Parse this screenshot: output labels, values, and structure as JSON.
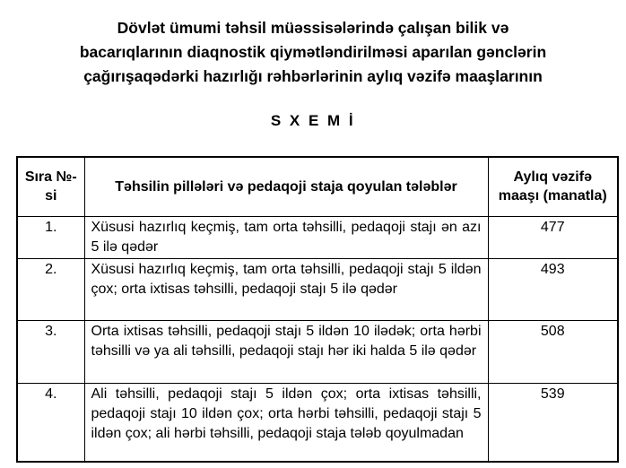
{
  "document": {
    "title_lines": [
      "Dövlət ümumi təhsil müəssisələrində çalışan bilik və",
      "bacarıqlarının diaqnostik qiymətləndirilməsi aparılan gənclərin",
      "çağırışaqədərki hazırlığı rəhbərlərinin aylıq vəzifə maaşlarının"
    ],
    "scheme_heading": "S X E M İ"
  },
  "table": {
    "headers": {
      "number": "Sıra №-si",
      "description": "Təhsilin pillələri və pedaqoji staja qoyulan tələblər",
      "salary": "Aylıq vəzifə maaşı (manatla)"
    },
    "rows": [
      {
        "no": "1.",
        "description": "Xüsusi hazırlıq keçmiş, tam orta təhsilli, pedaqoji stajı ən azı 5 ilə qədər",
        "salary": "477"
      },
      {
        "no": "2.",
        "description": "Xüsusi hazırlıq keçmiş, tam orta təhsilli, pedaqoji stajı 5 ildən çox; orta ixtisas təhsilli, pedaqoji stajı 5 ilə qədər",
        "salary": "493"
      },
      {
        "no": "3.",
        "description": "Orta ixtisas təhsilli, pedaqoji stajı 5 ildən 10 ilədək; orta hərbi təhsilli və ya ali təhsilli, pedaqoji stajı hər iki halda 5 ilə qədər",
        "salary": "508"
      },
      {
        "no": "4.",
        "description": "Ali təhsilli, pedaqoji stajı 5 ildən çox; orta ixtisas təhsilli, pedaqoji stajı 10 ildən çox; orta hərbi təhsilli, pedaqoji stajı 5 ildən çox; ali hərbi təhsilli, pedaqoji staja tələb qoyulmadan",
        "salary": "539"
      }
    ]
  },
  "colors": {
    "text": "#000000",
    "border": "#000000",
    "background": "#ffffff"
  }
}
